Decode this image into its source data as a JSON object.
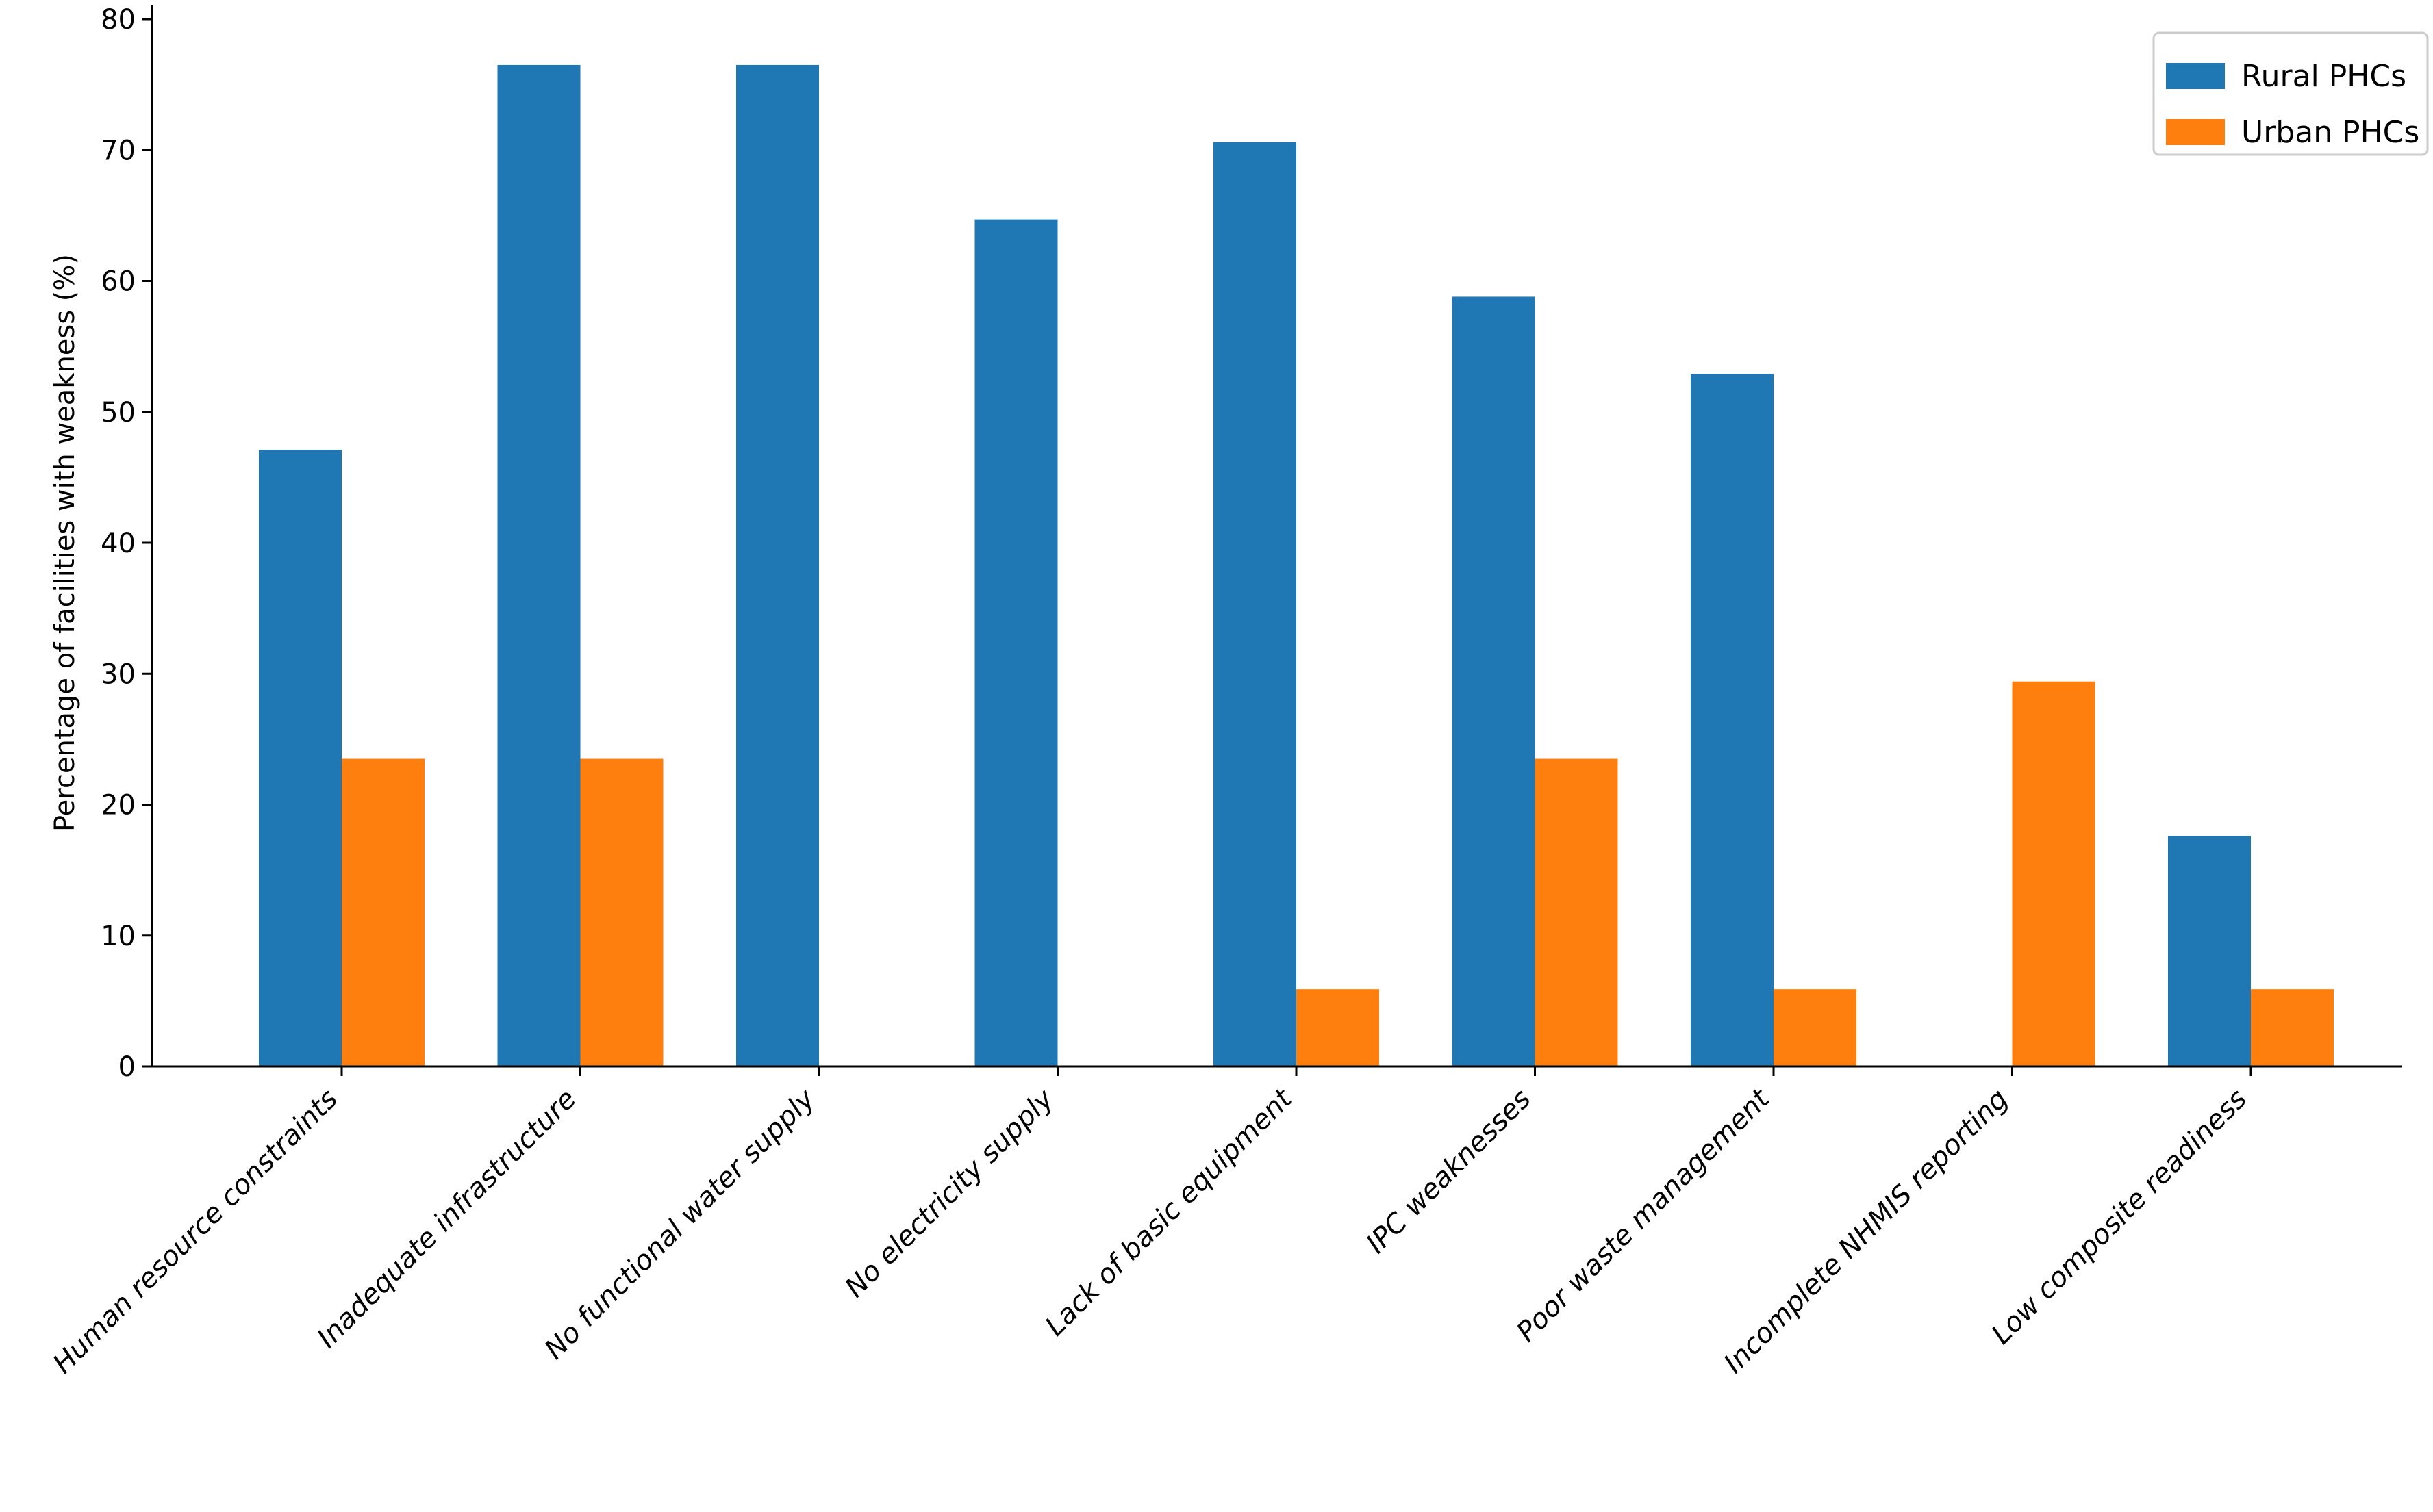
{
  "chart_data": {
    "type": "bar",
    "categories": [
      "Human resource constraints",
      "Inadequate infrastructure",
      "No functional water supply",
      "No electricity supply",
      "Lack of basic equipment",
      "IPC weaknesses",
      "Poor waste management",
      "Incomplete NHMIS reporting",
      "Low composite readiness"
    ],
    "series": [
      {
        "name": "Rural PHCs",
        "color": "#1f77b4",
        "values": [
          47.1,
          76.5,
          76.5,
          64.7,
          70.6,
          58.8,
          52.9,
          0,
          17.6
        ]
      },
      {
        "name": "Urban PHCs",
        "color": "#ff7f0e",
        "values": [
          23.5,
          23.5,
          0,
          0,
          5.9,
          23.5,
          5.9,
          29.4,
          5.9
        ]
      }
    ],
    "title": "",
    "xlabel": "",
    "ylabel": "Percentage of facilities with weakness (%)",
    "ylim": [
      0,
      80
    ],
    "yticks": [
      0,
      10,
      20,
      30,
      40,
      50,
      60,
      70,
      80
    ],
    "grid": false,
    "legend": "top-right"
  }
}
